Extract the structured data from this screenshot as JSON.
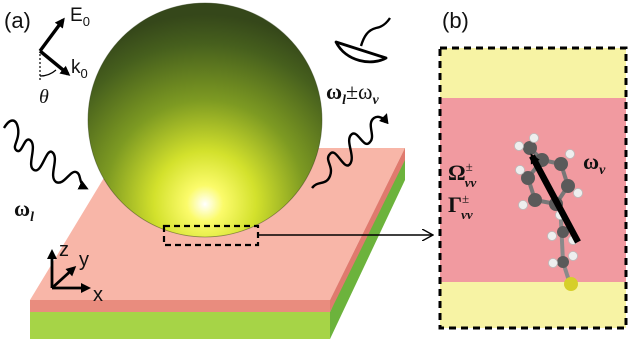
{
  "panels": {
    "a": {
      "label": "(a)"
    },
    "b": {
      "label": "(b)"
    }
  },
  "field_vectors": {
    "E_main": "E",
    "E_sub": "0",
    "k_main": "k",
    "k_sub": "0",
    "angle": "θ"
  },
  "beams": {
    "incident_main": "ω",
    "incident_sub": "l",
    "scattered_main": "ω",
    "scattered_sub": "l",
    "scattered_op": "±ω",
    "scattered_op_sub": "v"
  },
  "axes": {
    "z": "z",
    "y": "y",
    "x": "x"
  },
  "panel_b": {
    "omega_main": "Ω",
    "omega_sup": "±",
    "omega_sub": "vv",
    "gamma_main": "Γ",
    "gamma_sup": "±",
    "gamma_sub": "vv",
    "vib_main": "ω",
    "vib_sub": "v"
  },
  "colors": {
    "substrate_top": "#f6b4a5",
    "substrate_front": "#8ec63f",
    "substrate_side": "#5fa83a",
    "sphere_dark": "#3e5a1e",
    "sphere_light": "#f3f33a",
    "gap_yellow": "#f6f2a2",
    "gap_pink": "#f0949a"
  }
}
